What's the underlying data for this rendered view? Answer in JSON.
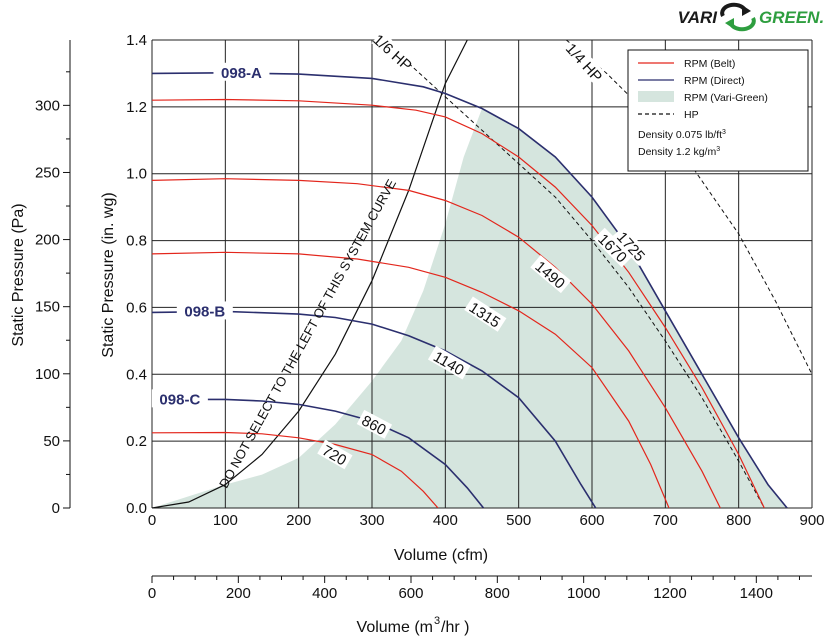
{
  "brand": {
    "text_left": "VARI",
    "text_right": "GREEN.",
    "color_dark": "#1a1a1a",
    "color_green": "#2e9e3f"
  },
  "chart_data": {
    "type": "line",
    "x_primary": {
      "label": "Volume (cfm)",
      "range": [
        0,
        900
      ],
      "ticks": [
        "0",
        "100",
        "200",
        "300",
        "400",
        "500",
        "600",
        "700",
        "800",
        "900"
      ]
    },
    "x_secondary": {
      "label_prefix": "Volume (m",
      "label_sup": "3",
      "label_suffix": "/hr )",
      "range_m3hr": [
        0,
        1529
      ],
      "ticks": [
        "0",
        "200",
        "400",
        "600",
        "800",
        "1000",
        "1200",
        "1400"
      ]
    },
    "y_primary": {
      "label": "Static Pressure (in. wg)",
      "range": [
        0,
        1.4
      ],
      "ticks": [
        "0.0",
        "0.2",
        "0.4",
        "0.6",
        "0.8",
        "1.0",
        "1.2",
        "1.4"
      ]
    },
    "y_secondary": {
      "label": "Static Pressure (Pa)",
      "range_pa": [
        0,
        348.7
      ],
      "ticks": [
        "0",
        "50",
        "100",
        "150",
        "200",
        "250",
        "300"
      ]
    },
    "grid": true,
    "colors": {
      "belt": "#e3261c",
      "direct": "#2b2f6e",
      "vari_green_fill": "#d5e5de",
      "hp": "#111111",
      "grid": "#222222"
    },
    "series": [
      {
        "name": "1725",
        "kind": "direct",
        "points": [
          [
            0,
            1.3
          ],
          [
            100,
            1.302
          ],
          [
            200,
            1.298
          ],
          [
            300,
            1.285
          ],
          [
            370,
            1.26
          ],
          [
            400,
            1.24
          ],
          [
            450,
            1.195
          ],
          [
            500,
            1.135
          ],
          [
            550,
            1.05
          ],
          [
            600,
            0.93
          ],
          [
            650,
            0.78
          ],
          [
            700,
            0.59
          ],
          [
            750,
            0.4
          ],
          [
            800,
            0.21
          ],
          [
            840,
            0.07
          ],
          [
            866,
            0
          ]
        ],
        "label": "1725",
        "label_at": [
          652,
          0.78
        ],
        "label_rot": 48
      },
      {
        "name": "1670",
        "kind": "belt",
        "points": [
          [
            0,
            1.22
          ],
          [
            100,
            1.222
          ],
          [
            200,
            1.218
          ],
          [
            300,
            1.205
          ],
          [
            360,
            1.19
          ],
          [
            400,
            1.17
          ],
          [
            450,
            1.12
          ],
          [
            500,
            1.05
          ],
          [
            550,
            0.96
          ],
          [
            600,
            0.845
          ],
          [
            650,
            0.705
          ],
          [
            700,
            0.54
          ],
          [
            750,
            0.36
          ],
          [
            800,
            0.16
          ],
          [
            835,
            0
          ]
        ],
        "label": "1670",
        "label_at": [
          627,
          0.775
        ],
        "label_rot": 45
      },
      {
        "name": "1490",
        "kind": "belt",
        "points": [
          [
            0,
            0.98
          ],
          [
            100,
            0.985
          ],
          [
            200,
            0.98
          ],
          [
            280,
            0.97
          ],
          [
            350,
            0.95
          ],
          [
            400,
            0.92
          ],
          [
            450,
            0.875
          ],
          [
            500,
            0.81
          ],
          [
            550,
            0.72
          ],
          [
            600,
            0.61
          ],
          [
            650,
            0.47
          ],
          [
            700,
            0.3
          ],
          [
            750,
            0.11
          ],
          [
            775,
            0
          ]
        ],
        "label": "1490",
        "label_at": [
          542,
          0.695
        ],
        "label_rot": 40
      },
      {
        "name": "1315",
        "kind": "belt",
        "points": [
          [
            0,
            0.76
          ],
          [
            100,
            0.765
          ],
          [
            200,
            0.76
          ],
          [
            280,
            0.745
          ],
          [
            350,
            0.72
          ],
          [
            400,
            0.69
          ],
          [
            450,
            0.645
          ],
          [
            500,
            0.59
          ],
          [
            550,
            0.52
          ],
          [
            600,
            0.42
          ],
          [
            650,
            0.26
          ],
          [
            680,
            0.13
          ],
          [
            705,
            0
          ]
        ],
        "label": "1315",
        "label_at": [
          453,
          0.575
        ],
        "label_rot": 33
      },
      {
        "name": "1140",
        "kind": "direct",
        "points": [
          [
            0,
            0.585
          ],
          [
            100,
            0.588
          ],
          [
            200,
            0.58
          ],
          [
            250,
            0.57
          ],
          [
            300,
            0.55
          ],
          [
            350,
            0.515
          ],
          [
            400,
            0.47
          ],
          [
            450,
            0.41
          ],
          [
            500,
            0.33
          ],
          [
            550,
            0.2
          ],
          [
            585,
            0.07
          ],
          [
            605,
            0
          ]
        ],
        "label": "1140",
        "label_at": [
          404,
          0.43
        ],
        "label_rot": 30
      },
      {
        "name": "860",
        "kind": "direct",
        "points": [
          [
            0,
            0.325
          ],
          [
            100,
            0.325
          ],
          [
            150,
            0.32
          ],
          [
            200,
            0.31
          ],
          [
            250,
            0.29
          ],
          [
            300,
            0.26
          ],
          [
            350,
            0.21
          ],
          [
            400,
            0.13
          ],
          [
            430,
            0.06
          ],
          [
            452,
            0
          ]
        ],
        "label": "860",
        "label_at": [
          302,
          0.245
        ],
        "label_rot": 28
      },
      {
        "name": "720",
        "kind": "belt",
        "points": [
          [
            0,
            0.225
          ],
          [
            100,
            0.226
          ],
          [
            150,
            0.222
          ],
          [
            200,
            0.21
          ],
          [
            250,
            0.19
          ],
          [
            300,
            0.16
          ],
          [
            340,
            0.11
          ],
          [
            370,
            0.05
          ],
          [
            390,
            0
          ]
        ],
        "label": "720",
        "label_at": [
          248,
          0.155
        ],
        "label_rot": 30
      }
    ],
    "direct_labels": [
      {
        "text": "098-A",
        "at": [
          122,
          1.302
        ]
      },
      {
        "text": "098-B",
        "at": [
          72,
          0.588
        ]
      },
      {
        "text": "098-C",
        "at": [
          38,
          0.325
        ]
      }
    ],
    "vari_green_region": [
      [
        0,
        0
      ],
      [
        100,
        0.07
      ],
      [
        150,
        0.1
      ],
      [
        200,
        0.15
      ],
      [
        250,
        0.25
      ],
      [
        300,
        0.38
      ],
      [
        340,
        0.5
      ],
      [
        370,
        0.65
      ],
      [
        400,
        0.85
      ],
      [
        425,
        1.05
      ],
      [
        450,
        1.195
      ],
      [
        500,
        1.135
      ],
      [
        550,
        1.05
      ],
      [
        600,
        0.93
      ],
      [
        650,
        0.78
      ],
      [
        700,
        0.59
      ],
      [
        750,
        0.4
      ],
      [
        800,
        0.21
      ],
      [
        840,
        0.07
      ],
      [
        866,
        0
      ]
    ],
    "system_curve": {
      "label": "DO NOT SELECT TO THE LEFT OF THIS SYSTEM CURVE",
      "points": [
        [
          0,
          0
        ],
        [
          50,
          0.018
        ],
        [
          100,
          0.07
        ],
        [
          150,
          0.16
        ],
        [
          200,
          0.29
        ],
        [
          250,
          0.46
        ],
        [
          300,
          0.68
        ],
        [
          350,
          0.95
        ],
        [
          400,
          1.27
        ],
        [
          430,
          1.4
        ]
      ]
    },
    "hp_lines": [
      {
        "name": "1/6 HP",
        "points": [
          [
            350,
            1.33
          ],
          [
            400,
            1.23
          ],
          [
            450,
            1.13
          ],
          [
            500,
            1.03
          ],
          [
            550,
            0.93
          ],
          [
            600,
            0.8
          ],
          [
            650,
            0.66
          ],
          [
            700,
            0.5
          ],
          [
            750,
            0.33
          ],
          [
            800,
            0.14
          ],
          [
            835,
            0
          ]
        ],
        "label_at": [
          327,
          1.36
        ],
        "label_rot": 42
      },
      {
        "name": "1/4 HP",
        "points": [
          [
            565,
            1.4
          ],
          [
            620,
            1.3
          ],
          [
            680,
            1.17
          ],
          [
            740,
            1.01
          ],
          [
            800,
            0.82
          ],
          [
            850,
            0.62
          ],
          [
            900,
            0.4
          ],
          [
            925,
            0.28
          ]
        ],
        "label_at": [
          588,
          1.33
        ],
        "label_rot": 48
      }
    ],
    "legend": {
      "placement": "top-right",
      "items": [
        {
          "kind": "belt",
          "text": "RPM (Belt)"
        },
        {
          "kind": "direct",
          "text": "RPM (Direct)"
        },
        {
          "kind": "fill",
          "text": "RPM (Vari-Green)"
        },
        {
          "kind": "dash",
          "text": "HP"
        }
      ],
      "density_lines": [
        {
          "text": "Density  0.075 lb/ft",
          "sup": "3"
        },
        {
          "text": "Density  1.2 kg/m",
          "sup": "3"
        }
      ]
    }
  }
}
